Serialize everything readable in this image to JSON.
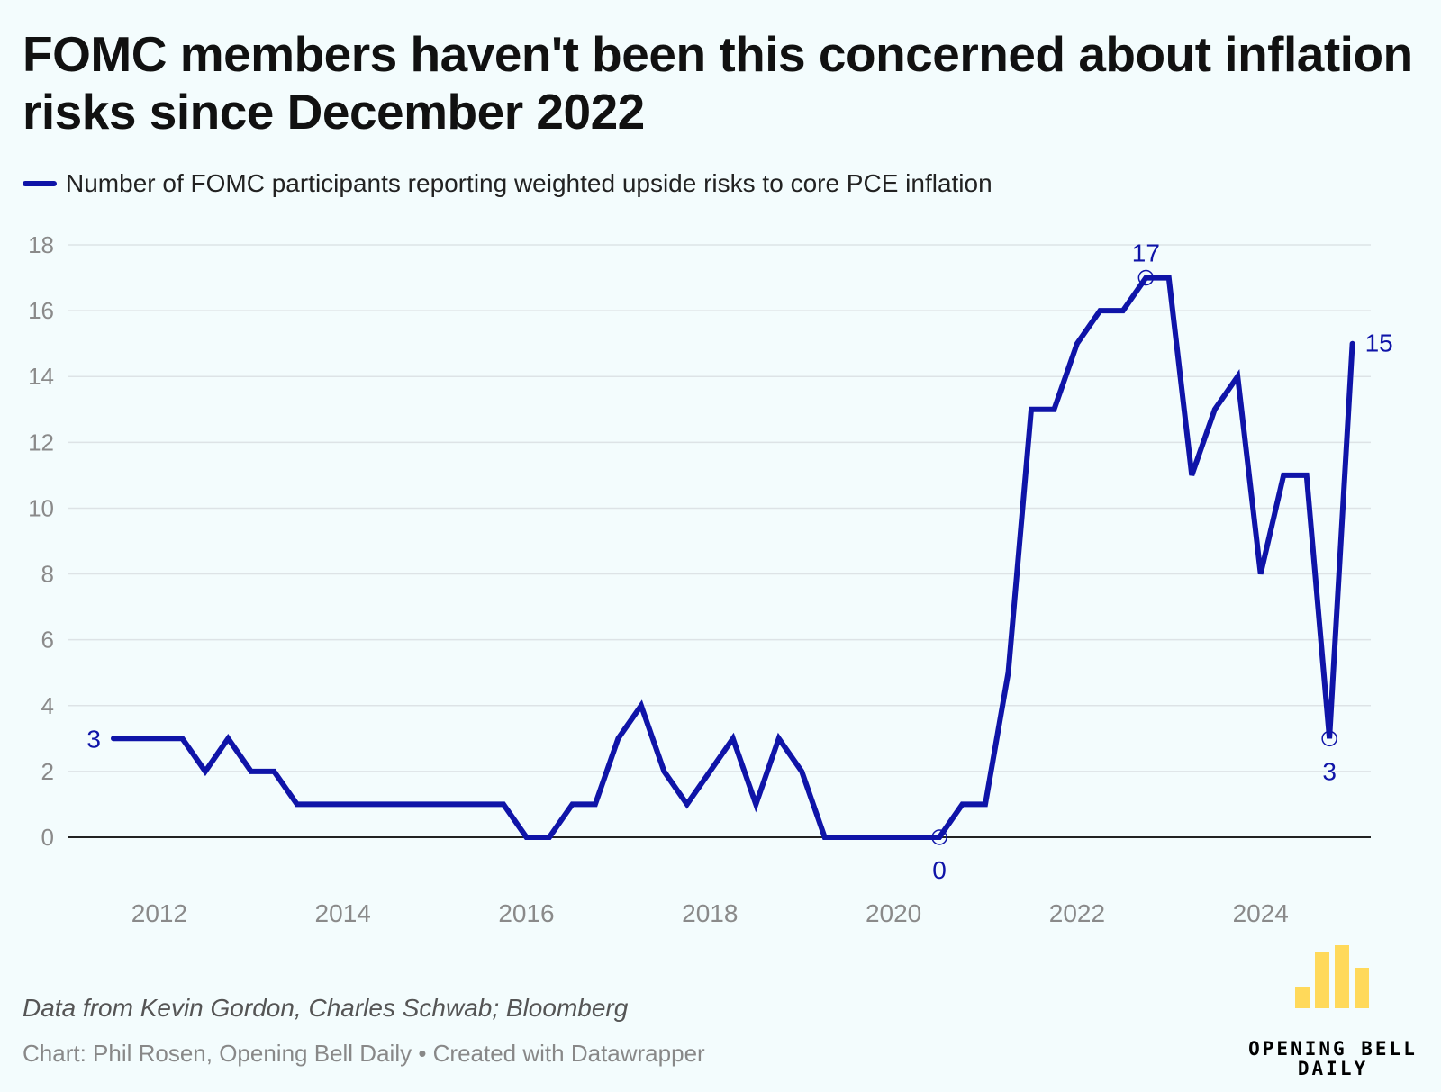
{
  "title": "FOMC members haven't been this concerned about inflation risks since December 2022",
  "legend": {
    "label": "Number of FOMC participants reporting weighted upside risks to core PCE inflation"
  },
  "source": "Data from Kevin Gordon, Charles Schwab; Bloomberg",
  "credit": "Chart: Phil Rosen, Opening Bell Daily • Created with Datawrapper",
  "logo": {
    "name": "opening-bell-daily-logo",
    "text": "OPENING BELL DAILY",
    "line1": "OPENING BELL",
    "line2": "DAILY"
  },
  "colors": {
    "series": "#0f14a8",
    "grid": "#dde3e6",
    "axis_text": "#8a8a8a",
    "baseline": "#222222",
    "logo_bars": "#ffd95a"
  },
  "chart_data": {
    "type": "line",
    "title": "FOMC members haven't been this concerned about inflation risks since December 2022",
    "xlabel": "",
    "ylabel": "",
    "ylim": [
      0,
      18
    ],
    "yticks": [
      0,
      2,
      4,
      6,
      8,
      10,
      12,
      14,
      16,
      18
    ],
    "xlim": [
      2011.0,
      2025.2
    ],
    "xticks": [
      2012,
      2014,
      2016,
      2018,
      2020,
      2022,
      2024
    ],
    "grid": true,
    "legend_position": "top-left",
    "series": [
      {
        "name": "Number of FOMC participants reporting weighted upside risks to core PCE inflation",
        "color": "#0f14a8",
        "x": [
          2011.5,
          2011.75,
          2012.0,
          2012.25,
          2012.5,
          2012.75,
          2013.0,
          2013.25,
          2013.5,
          2013.75,
          2014.0,
          2014.25,
          2014.5,
          2014.75,
          2015.0,
          2015.25,
          2015.5,
          2015.75,
          2016.0,
          2016.25,
          2016.5,
          2016.75,
          2017.0,
          2017.25,
          2017.5,
          2017.75,
          2018.0,
          2018.25,
          2018.5,
          2018.75,
          2019.0,
          2019.25,
          2019.5,
          2019.75,
          2020.0,
          2020.25,
          2020.5,
          2020.75,
          2021.0,
          2021.25,
          2021.5,
          2021.75,
          2022.0,
          2022.25,
          2022.5,
          2022.75,
          2023.0,
          2023.25,
          2023.5,
          2023.75,
          2024.0,
          2024.25,
          2024.5,
          2024.75,
          2025.0
        ],
        "y": [
          3,
          3,
          3,
          3,
          2,
          3,
          2,
          2,
          1,
          1,
          1,
          1,
          1,
          1,
          1,
          1,
          1,
          1,
          0,
          0,
          1,
          1,
          3,
          4,
          2,
          1,
          2,
          3,
          1,
          3,
          2,
          0,
          0,
          0,
          0,
          0,
          0,
          1,
          1,
          5,
          13,
          13,
          15,
          16,
          16,
          17,
          17,
          11,
          13,
          14,
          8,
          11,
          11,
          3,
          15
        ]
      }
    ],
    "annotations": [
      {
        "x": 2011.5,
        "y": 3,
        "label": "3",
        "marker": false
      },
      {
        "x": 2020.5,
        "y": 0,
        "label": "0",
        "marker": true
      },
      {
        "x": 2022.75,
        "y": 17,
        "label": "17",
        "marker": true
      },
      {
        "x": 2024.75,
        "y": 3,
        "label": "3",
        "marker": true
      },
      {
        "x": 2025.0,
        "y": 15,
        "label": "15",
        "marker": false
      }
    ]
  }
}
